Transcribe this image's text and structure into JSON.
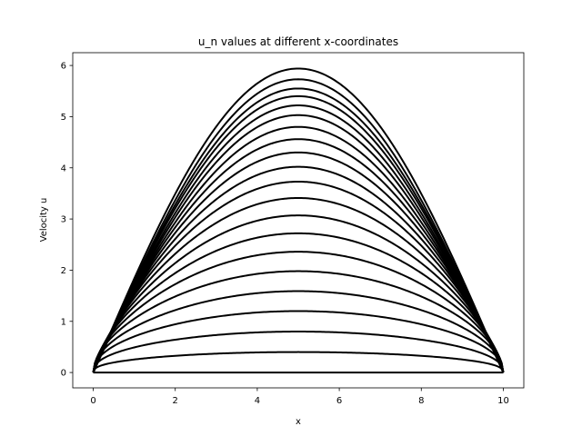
{
  "chart_data": {
    "type": "line",
    "title": "u_n values at different x-coordinates",
    "xlabel": "x",
    "ylabel": "Velocity u",
    "xlim": [
      -0.5,
      10.5
    ],
    "ylim": [
      -0.3,
      6.25
    ],
    "xticks": [
      0,
      2,
      4,
      6,
      8,
      10
    ],
    "yticks": [
      0,
      1,
      2,
      3,
      4,
      5,
      6
    ],
    "grid": false,
    "legend": "none",
    "x_domain": [
      0,
      10
    ],
    "line_color": "#000000",
    "series": [
      {
        "plateau": 0.0,
        "sharpness": 0.0
      },
      {
        "plateau": 0.4,
        "sharpness": 2.6
      },
      {
        "plateau": 0.8,
        "sharpness": 2.4
      },
      {
        "plateau": 1.2,
        "sharpness": 2.2
      },
      {
        "plateau": 1.59,
        "sharpness": 2.0
      },
      {
        "plateau": 1.98,
        "sharpness": 1.85
      },
      {
        "plateau": 2.36,
        "sharpness": 1.7
      },
      {
        "plateau": 2.72,
        "sharpness": 1.58
      },
      {
        "plateau": 3.07,
        "sharpness": 1.47
      },
      {
        "plateau": 3.41,
        "sharpness": 1.38
      },
      {
        "plateau": 3.73,
        "sharpness": 1.3
      },
      {
        "plateau": 4.02,
        "sharpness": 1.23
      },
      {
        "plateau": 4.3,
        "sharpness": 1.17
      },
      {
        "plateau": 4.56,
        "sharpness": 1.12
      },
      {
        "plateau": 4.8,
        "sharpness": 1.08
      },
      {
        "plateau": 5.03,
        "sharpness": 1.05
      },
      {
        "plateau": 5.22,
        "sharpness": 1.03
      },
      {
        "plateau": 5.4,
        "sharpness": 1.02
      },
      {
        "plateau": 5.55,
        "sharpness": 1.01
      },
      {
        "plateau": 5.73,
        "sharpness": 1.0
      },
      {
        "plateau": 5.94,
        "sharpness": 1.0
      }
    ]
  }
}
